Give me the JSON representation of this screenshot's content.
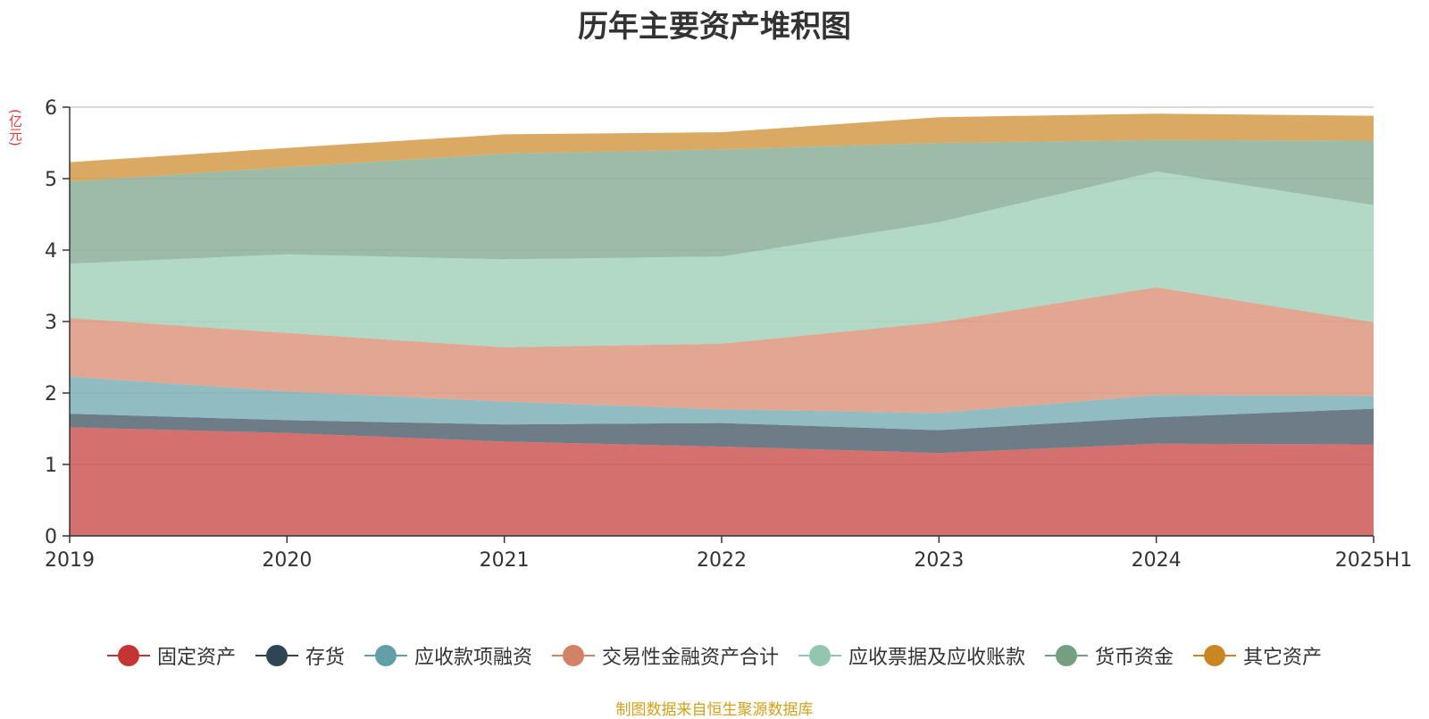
{
  "chart_data": {
    "type": "area",
    "stacked": true,
    "title": "历年主要资产堆积图",
    "ylabel": "(亿元)",
    "categories": [
      "2019",
      "2020",
      "2021",
      "2022",
      "2023",
      "2024",
      "2025H1"
    ],
    "ylim": [
      0,
      6
    ],
    "yticks": [
      "0",
      "1",
      "2",
      "3",
      "4",
      "5",
      "6"
    ],
    "grid": true,
    "legend_position": "bottom",
    "series": [
      {
        "name": "固定资产",
        "color": "#c23531",
        "values": [
          1.52,
          1.44,
          1.32,
          1.25,
          1.16,
          1.29,
          1.28
        ]
      },
      {
        "name": "存货",
        "color": "#2f4554",
        "values": [
          0.19,
          0.18,
          0.24,
          0.33,
          0.32,
          0.37,
          0.5
        ]
      },
      {
        "name": "应收款项融资",
        "color": "#61a0a8",
        "values": [
          0.52,
          0.4,
          0.32,
          0.19,
          0.24,
          0.31,
          0.18
        ]
      },
      {
        "name": "交易性金融资产合计",
        "color": "#d48265",
        "values": [
          0.82,
          0.82,
          0.76,
          0.92,
          1.27,
          1.51,
          1.03
        ]
      },
      {
        "name": "应收票据及应收账款",
        "color": "#91c7ae",
        "values": [
          0.76,
          1.1,
          1.23,
          1.22,
          1.4,
          1.62,
          1.64
        ]
      },
      {
        "name": "货币资金",
        "color": "#749f83",
        "values": [
          1.15,
          1.22,
          1.48,
          1.5,
          1.11,
          0.44,
          0.9
        ]
      },
      {
        "name": "其它资产",
        "color": "#ca8622",
        "values": [
          0.27,
          0.27,
          0.27,
          0.24,
          0.36,
          0.37,
          0.35
        ]
      }
    ]
  },
  "source_note": "制图数据来自恒生聚源数据库"
}
